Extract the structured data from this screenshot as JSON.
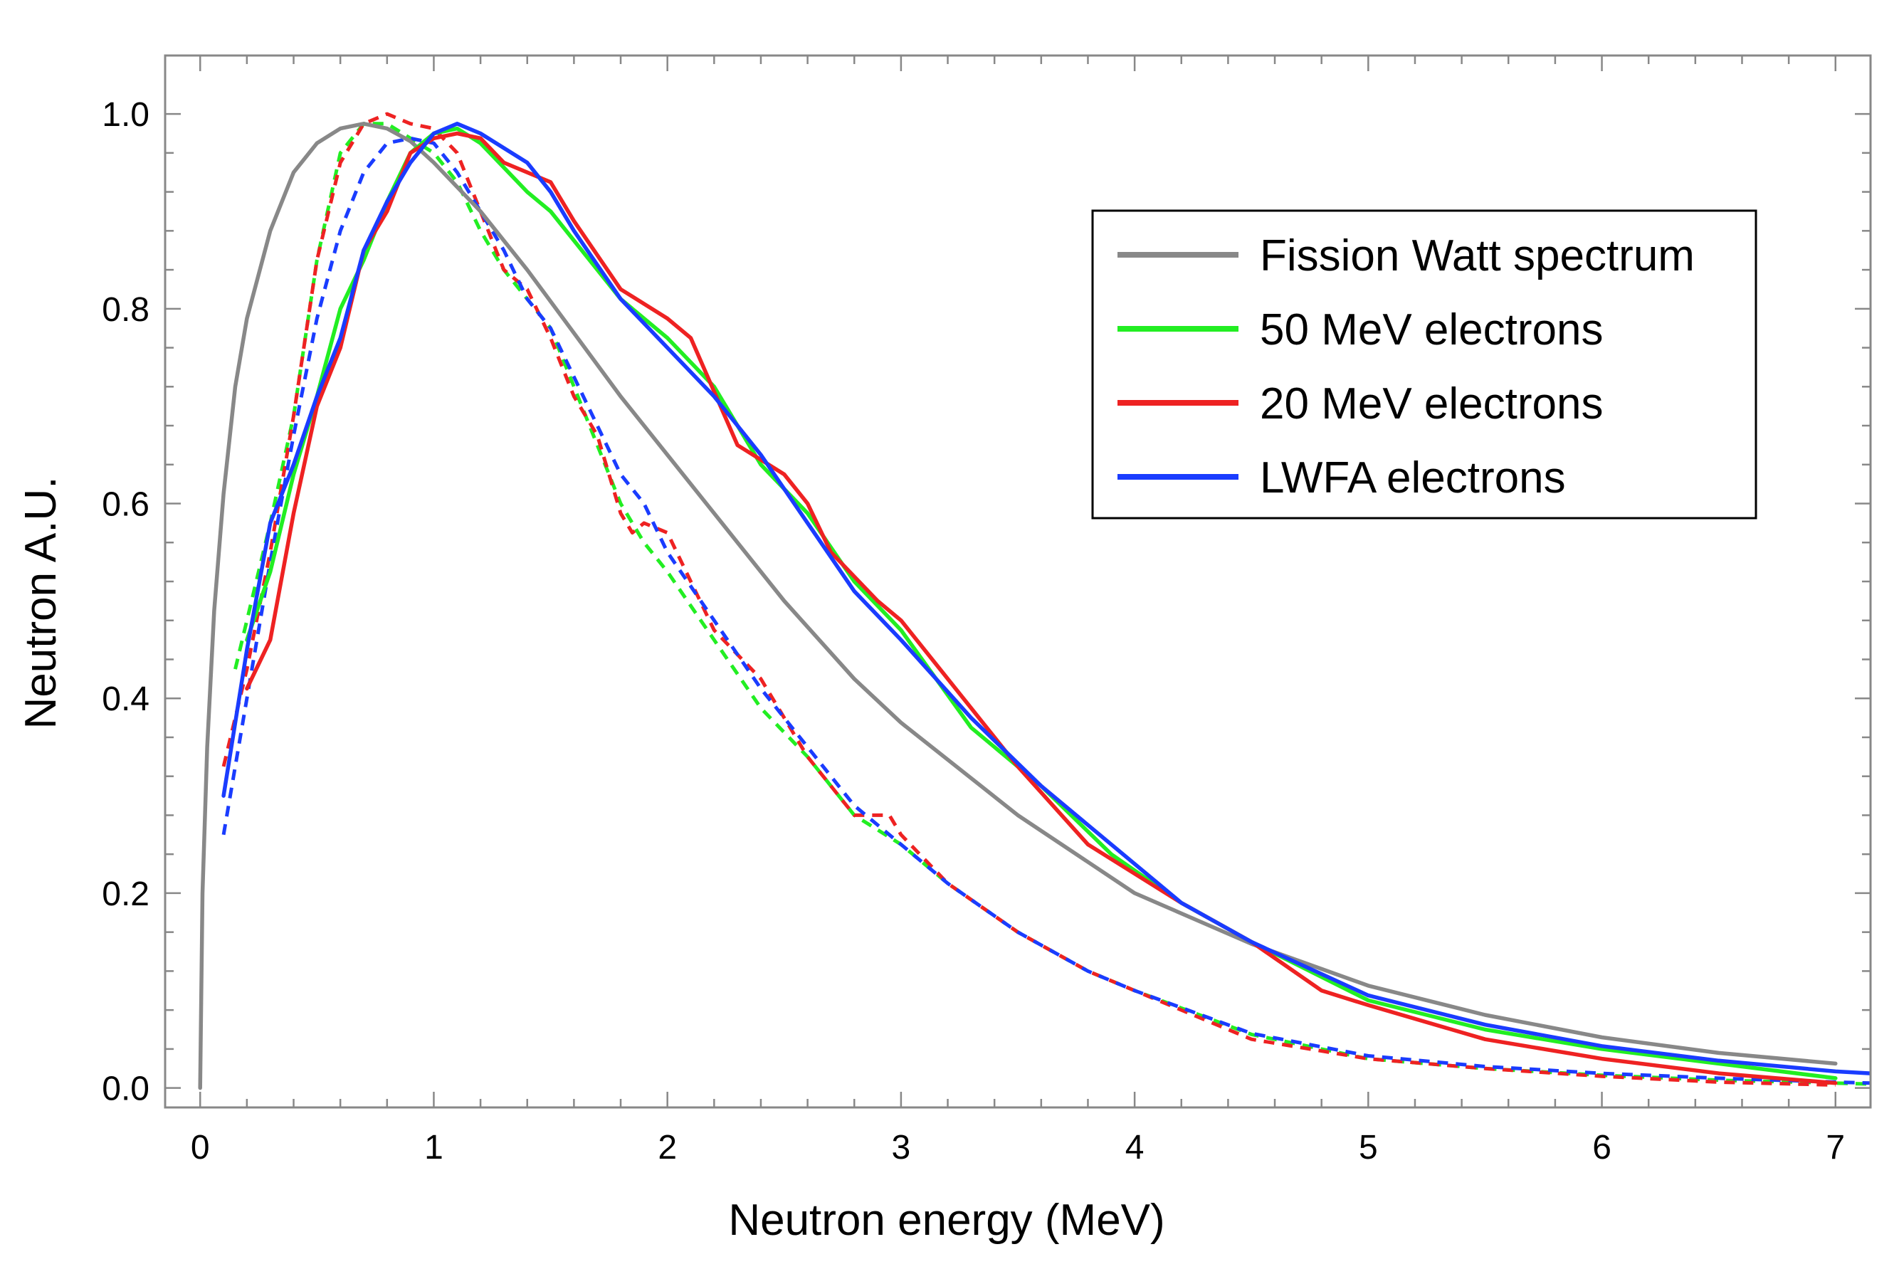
{
  "chart_data": {
    "type": "line",
    "title": "",
    "xlabel": "Neutron energy (MeV)",
    "ylabel": "Neutron A.U.",
    "xlim": [
      -0.15,
      7.15
    ],
    "ylim": [
      -0.02,
      1.06
    ],
    "xticks": [
      0,
      1,
      2,
      3,
      4,
      5,
      6,
      7
    ],
    "xtick_labels": [
      "0",
      "1",
      "2",
      "3",
      "4",
      "5",
      "6",
      "7"
    ],
    "yticks": [
      0.0,
      0.2,
      0.4,
      0.6,
      0.8,
      1.0
    ],
    "ytick_labels": [
      "0.0",
      "0.2",
      "0.4",
      "0.6",
      "0.8",
      "1.0"
    ],
    "grid": false,
    "legend_position": "top-right",
    "legend": [
      {
        "label": "Fission Watt spectrum",
        "color": "#888888"
      },
      {
        "label": "50 MeV electrons",
        "color": "#22ee22"
      },
      {
        "label": "20 MeV electrons",
        "color": "#ee2222"
      },
      {
        "label": "LWFA electrons",
        "color": "#1a3cff"
      }
    ],
    "series": [
      {
        "name": "Fission Watt spectrum",
        "style": "solid",
        "color": "#888888",
        "x": [
          0,
          0.01,
          0.03,
          0.06,
          0.1,
          0.15,
          0.2,
          0.3,
          0.4,
          0.5,
          0.6,
          0.7,
          0.8,
          0.9,
          1.0,
          1.2,
          1.4,
          1.6,
          1.8,
          2.0,
          2.2,
          2.5,
          2.8,
          3.0,
          3.5,
          4.0,
          4.5,
          5.0,
          5.5,
          6.0,
          6.5,
          7.0
        ],
        "y": [
          0.0,
          0.2,
          0.35,
          0.49,
          0.61,
          0.72,
          0.79,
          0.88,
          0.94,
          0.97,
          0.985,
          0.99,
          0.985,
          0.972,
          0.95,
          0.9,
          0.84,
          0.775,
          0.71,
          0.65,
          0.59,
          0.5,
          0.42,
          0.375,
          0.28,
          0.2,
          0.148,
          0.105,
          0.075,
          0.052,
          0.036,
          0.025
        ]
      },
      {
        "name": "50 MeV electrons",
        "style": "solid",
        "color": "#22ee22",
        "x": [
          0.2,
          0.3,
          0.4,
          0.5,
          0.6,
          0.7,
          0.8,
          0.9,
          1.0,
          1.1,
          1.2,
          1.4,
          1.5,
          1.6,
          1.8,
          2.0,
          2.2,
          2.4,
          2.6,
          2.8,
          3.0,
          3.3,
          3.6,
          3.9,
          4.2,
          4.5,
          5.0,
          5.5,
          6.0,
          6.5,
          7.0
        ],
        "y": [
          0.46,
          0.53,
          0.63,
          0.71,
          0.8,
          0.85,
          0.91,
          0.96,
          0.98,
          0.985,
          0.97,
          0.92,
          0.9,
          0.87,
          0.81,
          0.77,
          0.72,
          0.64,
          0.59,
          0.52,
          0.47,
          0.37,
          0.31,
          0.24,
          0.19,
          0.15,
          0.09,
          0.06,
          0.04,
          0.025,
          0.01
        ]
      },
      {
        "name": "20 MeV electrons",
        "style": "solid",
        "color": "#ee2222",
        "x": [
          0.2,
          0.3,
          0.4,
          0.5,
          0.6,
          0.7,
          0.8,
          0.9,
          1.0,
          1.1,
          1.2,
          1.3,
          1.5,
          1.6,
          1.8,
          2.0,
          2.1,
          2.3,
          2.5,
          2.6,
          2.7,
          2.9,
          3.0,
          3.3,
          3.5,
          3.8,
          4.0,
          4.2,
          4.5,
          4.8,
          5.0,
          5.5,
          6.0,
          6.5,
          7.0
        ],
        "y": [
          0.41,
          0.46,
          0.59,
          0.7,
          0.76,
          0.86,
          0.9,
          0.96,
          0.975,
          0.98,
          0.975,
          0.95,
          0.93,
          0.89,
          0.82,
          0.79,
          0.77,
          0.66,
          0.63,
          0.6,
          0.55,
          0.5,
          0.48,
          0.39,
          0.33,
          0.25,
          0.22,
          0.19,
          0.15,
          0.1,
          0.085,
          0.05,
          0.03,
          0.015,
          0.005
        ]
      },
      {
        "name": "LWFA electrons",
        "style": "solid",
        "color": "#1a3cff",
        "x": [
          0.1,
          0.2,
          0.3,
          0.4,
          0.5,
          0.6,
          0.7,
          0.8,
          0.9,
          1.0,
          1.1,
          1.2,
          1.4,
          1.5,
          1.6,
          1.8,
          2.0,
          2.2,
          2.4,
          2.6,
          2.8,
          3.0,
          3.3,
          3.6,
          3.9,
          4.2,
          4.5,
          5.0,
          5.5,
          6.0,
          6.5,
          7.0,
          7.15
        ],
        "y": [
          0.3,
          0.45,
          0.58,
          0.64,
          0.71,
          0.77,
          0.86,
          0.91,
          0.95,
          0.98,
          0.99,
          0.98,
          0.95,
          0.92,
          0.88,
          0.81,
          0.76,
          0.71,
          0.65,
          0.58,
          0.51,
          0.46,
          0.38,
          0.31,
          0.25,
          0.19,
          0.15,
          0.095,
          0.065,
          0.043,
          0.028,
          0.017,
          0.015
        ]
      },
      {
        "name": "50 MeV electrons (dashed)",
        "style": "dashed",
        "color": "#22ee22",
        "x": [
          0.15,
          0.2,
          0.3,
          0.4,
          0.5,
          0.6,
          0.7,
          0.8,
          0.9,
          1.0,
          1.1,
          1.2,
          1.3,
          1.4,
          1.5,
          1.6,
          1.7,
          1.8,
          1.9,
          2.0,
          2.2,
          2.4,
          2.6,
          2.8,
          3.0,
          3.2,
          3.5,
          3.8,
          4.0,
          4.5,
          5.0,
          5.5,
          6.0,
          6.5,
          7.0,
          7.15
        ],
        "y": [
          0.43,
          0.48,
          0.58,
          0.69,
          0.85,
          0.96,
          0.99,
          0.99,
          0.975,
          0.96,
          0.93,
          0.88,
          0.84,
          0.81,
          0.78,
          0.72,
          0.66,
          0.6,
          0.56,
          0.53,
          0.46,
          0.39,
          0.34,
          0.28,
          0.25,
          0.21,
          0.16,
          0.12,
          0.1,
          0.055,
          0.03,
          0.02,
          0.013,
          0.008,
          0.005,
          0.004
        ]
      },
      {
        "name": "20 MeV electrons (dashed)",
        "style": "dashed",
        "color": "#ee2222",
        "x": [
          0.1,
          0.2,
          0.3,
          0.4,
          0.5,
          0.6,
          0.7,
          0.8,
          0.9,
          1.0,
          1.1,
          1.2,
          1.3,
          1.4,
          1.5,
          1.6,
          1.7,
          1.8,
          1.85,
          1.9,
          2.0,
          2.2,
          2.4,
          2.6,
          2.8,
          2.95,
          3.0,
          3.2,
          3.5,
          3.8,
          4.0,
          4.5,
          5.0,
          5.5,
          6.0,
          6.5,
          7.0
        ],
        "y": [
          0.33,
          0.43,
          0.55,
          0.69,
          0.85,
          0.95,
          0.99,
          1.0,
          0.99,
          0.985,
          0.96,
          0.9,
          0.84,
          0.82,
          0.77,
          0.71,
          0.67,
          0.59,
          0.57,
          0.58,
          0.57,
          0.47,
          0.42,
          0.34,
          0.28,
          0.28,
          0.26,
          0.21,
          0.16,
          0.12,
          0.1,
          0.05,
          0.03,
          0.02,
          0.012,
          0.006,
          0.003
        ]
      },
      {
        "name": "LWFA electrons (dashed)",
        "style": "dashed",
        "color": "#1a3cff",
        "x": [
          0.1,
          0.2,
          0.3,
          0.4,
          0.5,
          0.6,
          0.7,
          0.8,
          0.9,
          1.0,
          1.1,
          1.2,
          1.3,
          1.4,
          1.5,
          1.6,
          1.7,
          1.8,
          1.9,
          2.0,
          2.2,
          2.4,
          2.6,
          2.8,
          3.0,
          3.2,
          3.5,
          3.8,
          4.0,
          4.5,
          5.0,
          5.5,
          6.0,
          6.5,
          7.0,
          7.15
        ],
        "y": [
          0.26,
          0.4,
          0.54,
          0.67,
          0.79,
          0.88,
          0.94,
          0.97,
          0.975,
          0.97,
          0.94,
          0.9,
          0.86,
          0.81,
          0.78,
          0.73,
          0.68,
          0.63,
          0.6,
          0.55,
          0.48,
          0.41,
          0.35,
          0.29,
          0.25,
          0.21,
          0.16,
          0.12,
          0.1,
          0.056,
          0.033,
          0.022,
          0.015,
          0.01,
          0.006,
          0.005
        ]
      }
    ]
  }
}
